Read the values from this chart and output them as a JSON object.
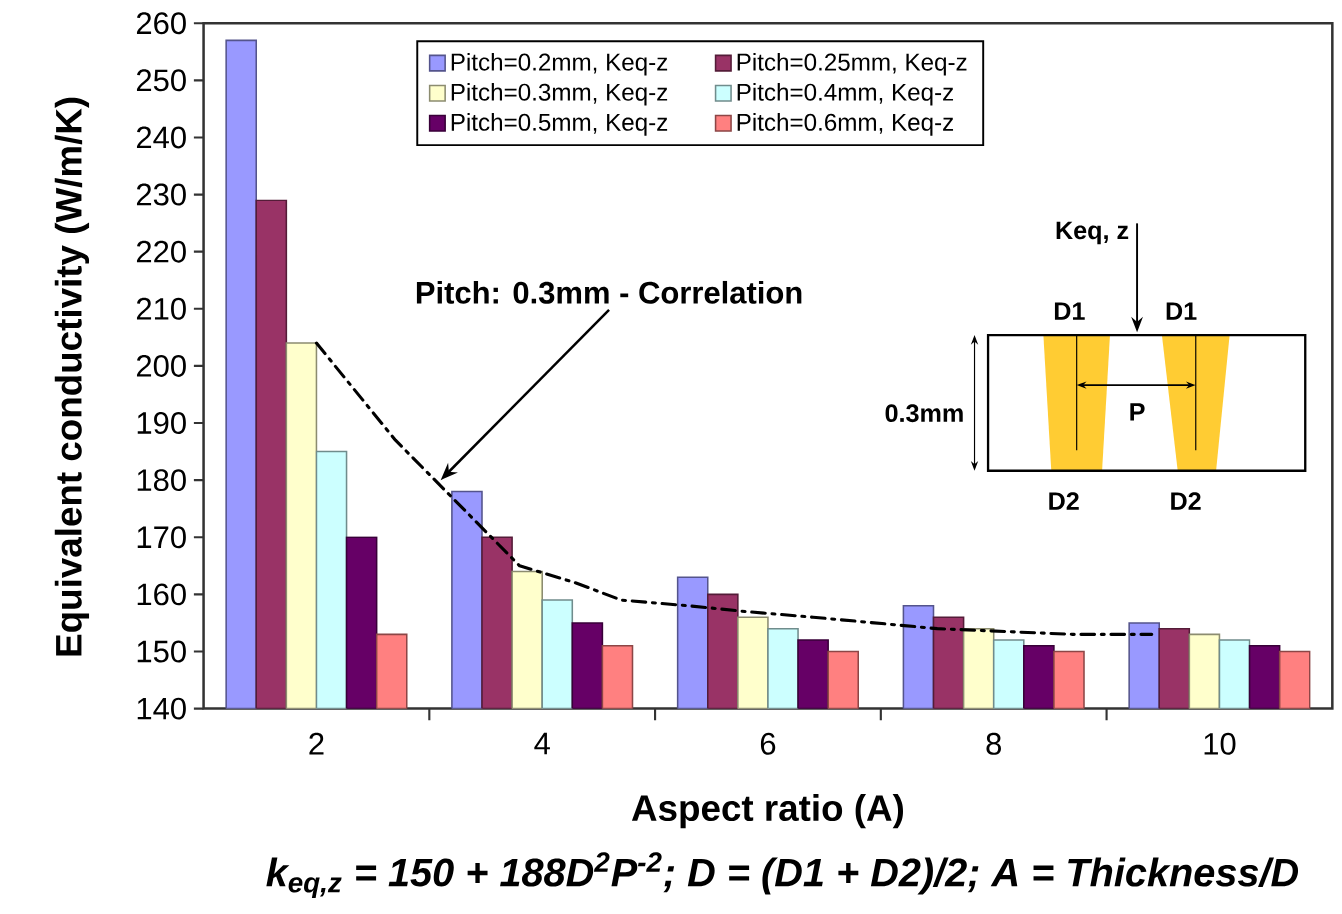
{
  "chart_data": {
    "type": "bar",
    "xlabel": "Aspect ratio (A)",
    "ylabel": "Equivalent conductivity (W/m/K)",
    "x": [
      2,
      4,
      6,
      8,
      10
    ],
    "xlim": [
      1,
      11
    ],
    "xticks": [
      2,
      {
        "value": 3,
        "label": null
      },
      4,
      {
        "value": 5,
        "label": null
      },
      6,
      {
        "value": 7,
        "label": null
      },
      8,
      {
        "value": 9,
        "label": null
      },
      10
    ],
    "ylim": [
      140,
      260
    ],
    "yticks": [
      140,
      150,
      160,
      170,
      180,
      190,
      200,
      210,
      220,
      230,
      240,
      250,
      260
    ],
    "legend": "top",
    "series": [
      {
        "name": "Pitch=0.2mm, Keq-z",
        "color": "#9999ff",
        "values": [
          257,
          178,
          163,
          158,
          155
        ]
      },
      {
        "name": "Pitch=0.25mm, Keq-z",
        "color": "#993366",
        "values": [
          229,
          170,
          160,
          156,
          154
        ]
      },
      {
        "name": "Pitch=0.3mm, Keq-z",
        "color": "#ffffcc",
        "values": [
          204,
          164,
          156,
          154,
          153
        ]
      },
      {
        "name": "Pitch=0.4mm, Keq-z",
        "color": "#ccffff",
        "values": [
          185,
          159,
          154,
          152,
          152
        ]
      },
      {
        "name": "Pitch=0.5mm, Keq-z",
        "color": "#660066",
        "values": [
          170,
          155,
          152,
          151,
          151
        ]
      },
      {
        "name": "Pitch=0.6mm, Keq-z",
        "color": "#ff8080",
        "values": [
          153,
          151,
          150,
          150,
          150
        ]
      },
      {
        "type": "line",
        "color": "#000000",
        "line_style": "dashdot",
        "x": [
          2.0,
          2.7,
          3.1,
          3.5,
          3.8,
          4.3,
          4.7,
          5.3,
          5.8,
          6.4,
          7.5,
          8.7,
          9.4
        ],
        "values": [
          204,
          187,
          179,
          171,
          165,
          162,
          159,
          158,
          157,
          156,
          154,
          153,
          153
        ]
      }
    ],
    "annotations": [
      {
        "text": "Pitch: 0.3mm - Correlation",
        "x": 3.1,
        "y": 180
      },
      "Keq, z",
      "D1",
      "D1",
      "0.3mm",
      "P",
      "D2",
      "D2",
      "k$_{eq,z}$ = 150 + 188D$^{2}$P$^{-2}$;  D = (D1 + D2)/2;  A = Thickness/D"
    ]
  }
}
